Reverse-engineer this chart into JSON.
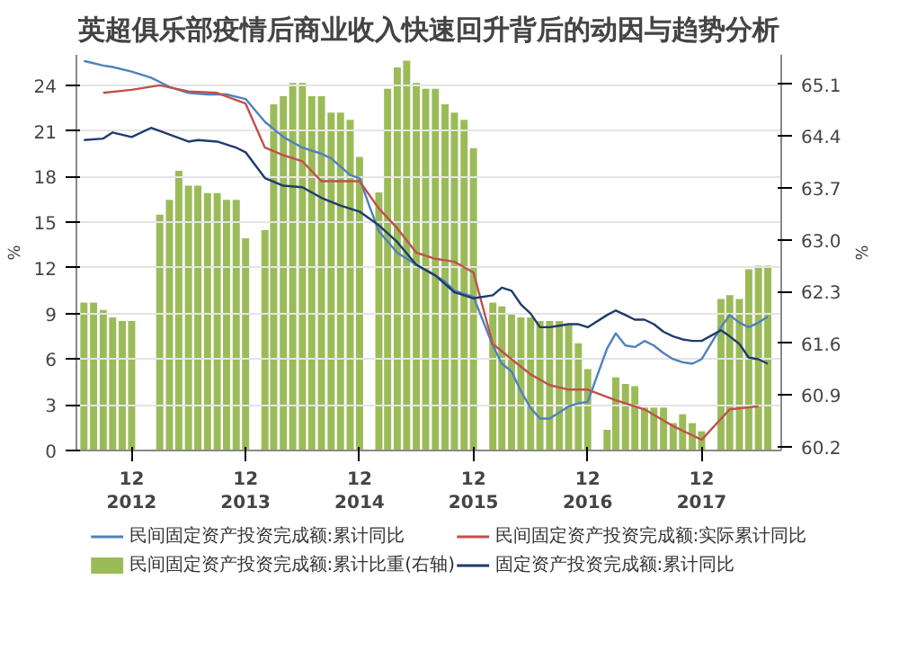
{
  "chart_data": {
    "type": "line",
    "title": "英超俱乐部疫情后商业收入快速回升背后的动因与趋势分析",
    "ylabel": "%",
    "y2label": "%",
    "xlim": [
      "2012-06-07",
      "2018-08-13"
    ],
    "xticks": [
      {
        "value": "2012-12",
        "label": "12\n2012"
      },
      {
        "value": "2013-12",
        "label": "12\n2013"
      },
      {
        "value": "2014-12",
        "label": "12\n2014"
      },
      {
        "value": "2015-12",
        "label": "12\n2015"
      },
      {
        "value": "2016-12",
        "label": "12\n2016"
      },
      {
        "value": "2017-12",
        "label": "12\n2017"
      }
    ],
    "ylim": [
      0,
      26
    ],
    "yticks": [
      0,
      3,
      6,
      9,
      12,
      15,
      18,
      21,
      24
    ],
    "y2lim": [
      60.15,
      65.5
    ],
    "y2ticks": [
      60.2,
      60.9,
      61.6,
      62.3,
      {
        "value": 63.0,
        "label": "63.0"
      },
      63.7,
      64.4,
      65.1
    ],
    "grid": "y",
    "legend": "bottom",
    "series": [
      {
        "name": "民间固定资产投资完成额:累计同比",
        "color": "#4f81bd",
        "x": [
          "2012-07",
          "2012-09",
          "2012-10",
          "2012-12",
          "2013-02",
          "2013-04",
          "2013-06",
          "2013-08",
          "2013-10",
          "2013-12",
          "2014-02",
          "2014-04",
          "2014-06",
          "2014-08",
          "2014-09",
          "2014-11",
          "2014-12",
          "2015-01",
          "2015-02",
          "2015-04",
          "2015-06",
          "2015-08",
          "2015-09",
          "2015-10",
          "2015-12",
          "2016-02",
          "2016-03",
          "2016-04",
          "2016-05",
          "2016-06",
          "2016-07",
          "2016-08",
          "2016-09",
          "2016-10",
          "2016-11",
          "2016-12",
          "2017-02",
          "2017-03",
          "2017-04",
          "2017-05",
          "2017-06",
          "2017-07",
          "2017-08",
          "2017-09",
          "2017-10",
          "2017-11",
          "2017-12",
          "2018-02",
          "2018-03",
          "2018-04",
          "2018-05",
          "2018-06",
          "2018-07"
        ],
        "values": [
          25.6,
          25.3,
          25.2,
          24.9,
          24.5,
          23.9,
          23.5,
          23.4,
          23.4,
          23.1,
          21.6,
          20.6,
          19.9,
          19.5,
          19.2,
          18.1,
          17.9,
          16.1,
          14.4,
          13.0,
          12.2,
          11.5,
          11.1,
          10.5,
          10.1,
          6.9,
          5.7,
          5.2,
          3.9,
          2.8,
          2.1,
          2.1,
          2.5,
          2.9,
          3.1,
          3.2,
          6.7,
          7.7,
          6.9,
          6.8,
          7.2,
          6.9,
          6.4,
          6.0,
          5.8,
          5.7,
          6.0,
          8.1,
          8.9,
          8.4,
          8.1,
          8.4,
          8.8
        ]
      },
      {
        "name": "民间固定资产投资完成额:实际累计同比",
        "color": "#c0504d",
        "x": [
          "2012-09",
          "2012-12",
          "2013-03",
          "2013-06",
          "2013-09",
          "2013-12",
          "2014-02",
          "2014-04",
          "2014-06",
          "2014-08",
          "2014-12",
          "2015-02",
          "2015-04",
          "2015-06",
          "2015-08",
          "2015-10",
          "2015-12",
          "2016-02",
          "2016-04",
          "2016-06",
          "2016-08",
          "2016-10",
          "2016-12",
          "2017-03",
          "2017-06",
          "2017-09",
          "2017-12",
          "2018-03",
          "2018-06"
        ],
        "values": [
          23.5,
          23.7,
          24.0,
          23.6,
          23.5,
          22.8,
          19.9,
          19.4,
          19.0,
          17.7,
          17.7,
          15.9,
          14.6,
          13.0,
          12.6,
          12.4,
          11.7,
          7.0,
          6.0,
          5.0,
          4.3,
          4.0,
          4.0,
          3.3,
          2.7,
          1.6,
          0.7,
          2.7,
          2.9
        ]
      },
      {
        "name": "民间固定资产投资完成额:累计比重(右轴)",
        "type": "bar",
        "axis": "y2",
        "color": "#9bbb59",
        "x": [
          "2012-07",
          "2012-08",
          "2012-09",
          "2012-10",
          "2012-11",
          "2012-12",
          "2013-03",
          "2013-04",
          "2013-05",
          "2013-06",
          "2013-07",
          "2013-08",
          "2013-09",
          "2013-10",
          "2013-11",
          "2013-12",
          "2014-02",
          "2014-03",
          "2014-04",
          "2014-05",
          "2014-06",
          "2014-07",
          "2014-08",
          "2014-09",
          "2014-10",
          "2014-11",
          "2014-12",
          "2015-02",
          "2015-03",
          "2015-04",
          "2015-05",
          "2015-06",
          "2015-07",
          "2015-08",
          "2015-09",
          "2015-10",
          "2015-11",
          "2015-12",
          "2016-02",
          "2016-03",
          "2016-04",
          "2016-05",
          "2016-06",
          "2016-07",
          "2016-08",
          "2016-09",
          "2016-10",
          "2016-11",
          "2016-12",
          "2017-02",
          "2017-03",
          "2017-04",
          "2017-05",
          "2017-06",
          "2017-07",
          "2017-08",
          "2017-09",
          "2017-10",
          "2017-11",
          "2017-12",
          "2018-02",
          "2018-03",
          "2018-04",
          "2018-05",
          "2018-06",
          "2018-07"
        ],
        "values": [
          62.15,
          62.15,
          62.05,
          61.95,
          61.9,
          61.9,
          63.34,
          63.54,
          63.93,
          63.73,
          63.73,
          63.63,
          63.63,
          63.54,
          63.54,
          63.02,
          63.13,
          64.83,
          64.94,
          65.12,
          65.12,
          64.94,
          64.94,
          64.72,
          64.72,
          64.62,
          64.12,
          63.64,
          65.04,
          65.33,
          65.42,
          65.12,
          65.04,
          65.04,
          64.83,
          64.72,
          64.62,
          64.24,
          62.15,
          62.1,
          62.0,
          61.95,
          61.95,
          61.9,
          61.9,
          61.9,
          61.85,
          61.6,
          61.25,
          60.43,
          61.14,
          61.05,
          61.02,
          60.73,
          60.73,
          60.73,
          60.52,
          60.64,
          60.52,
          60.41,
          62.2,
          62.25,
          62.2,
          62.6,
          62.65,
          62.65
        ]
      },
      {
        "name": "固定资产投资完成额:累计同比",
        "color": "#1f3b6e",
        "x": [
          "2012-07",
          "2012-09",
          "2012-10",
          "2012-12",
          "2013-02",
          "2013-03",
          "2013-06",
          "2013-07",
          "2013-09",
          "2013-11",
          "2013-12",
          "2014-02",
          "2014-04",
          "2014-06",
          "2014-08",
          "2014-10",
          "2014-12",
          "2015-02",
          "2015-04",
          "2015-06",
          "2015-08",
          "2015-10",
          "2015-12",
          "2016-02",
          "2016-03",
          "2016-04",
          "2016-05",
          "2016-06",
          "2016-07",
          "2016-08",
          "2016-09",
          "2016-10",
          "2016-11",
          "2016-12",
          "2017-02",
          "2017-03",
          "2017-04",
          "2017-05",
          "2017-06",
          "2017-07",
          "2017-08",
          "2017-09",
          "2017-10",
          "2017-11",
          "2017-12",
          "2018-02",
          "2018-03",
          "2018-04",
          "2018-05",
          "2018-06",
          "2018-07"
        ],
        "values": [
          20.4,
          20.5,
          20.9,
          20.6,
          21.2,
          21.0,
          20.3,
          20.4,
          20.3,
          19.9,
          19.6,
          17.9,
          17.4,
          17.3,
          16.6,
          16.1,
          15.7,
          14.8,
          13.7,
          12.2,
          11.5,
          10.4,
          10.0,
          10.2,
          10.7,
          10.5,
          9.6,
          9.0,
          8.1,
          8.1,
          8.2,
          8.3,
          8.3,
          8.1,
          8.9,
          9.2,
          8.9,
          8.6,
          8.6,
          8.3,
          7.8,
          7.5,
          7.3,
          7.2,
          7.2,
          7.9,
          7.5,
          7.0,
          6.1,
          6.0,
          5.7
        ]
      }
    ]
  }
}
